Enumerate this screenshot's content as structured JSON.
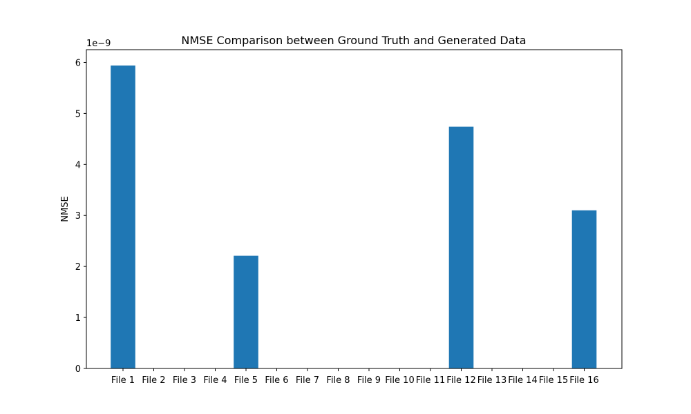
{
  "chart_data": {
    "type": "bar",
    "title": "NMSE Comparison between Ground Truth and Generated Data",
    "xlabel": "",
    "ylabel": "NMSE",
    "scale_label": "1e−9",
    "categories": [
      "File 1",
      "File 2",
      "File 3",
      "File 4",
      "File 5",
      "File 6",
      "File 7",
      "File 8",
      "File 9",
      "File 10",
      "File 11",
      "File 12",
      "File 13",
      "File 14",
      "File 15",
      "File 16"
    ],
    "values": [
      5.94,
      0,
      0,
      0,
      2.21,
      0,
      0,
      0,
      0,
      0,
      0,
      4.74,
      0,
      0,
      0,
      3.1
    ],
    "value_multiplier": 1e-09,
    "ylim": [
      0,
      6.25
    ],
    "yticks": [
      0,
      1,
      2,
      3,
      4,
      5,
      6
    ],
    "bar_color": "#1f77b4",
    "grid": false
  }
}
